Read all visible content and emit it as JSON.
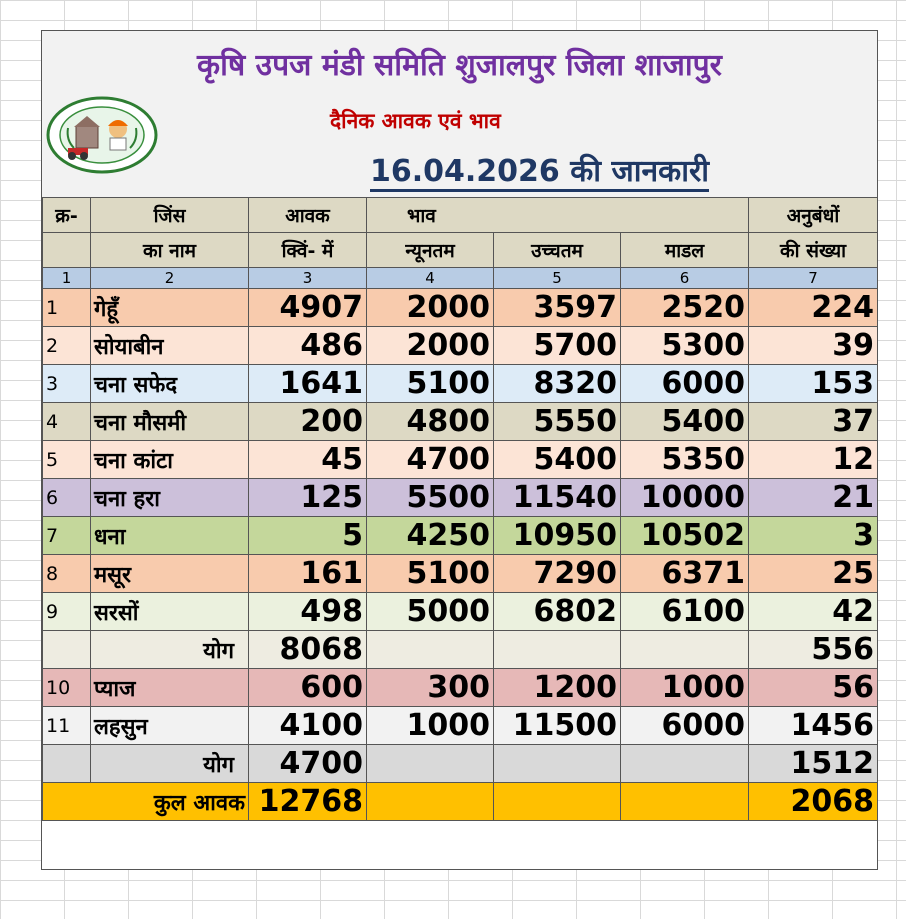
{
  "header": {
    "title": "कृषि उपज मंडी समिति शुजालपुर जिला शाजापुर",
    "subtitle": "दैनिक आवक एवं भाव",
    "date_line": "16.04.2026 की जानकारी",
    "logo_name": "mandi-board-logo-icon"
  },
  "columns": {
    "sno_label": "क्र-",
    "name_line1": "जिंस",
    "name_line2": "का नाम",
    "arrival_line1": "आवक",
    "arrival_line2": "क्विं- में",
    "price_label": "भाव",
    "min_label": "न्यूनतम",
    "max_label": "उच्चतम",
    "model_label": "माडल",
    "contracts_line1": "अनुबंधों",
    "contracts_line2": "की संख्या",
    "numbers": [
      "1",
      "2",
      "3",
      "4",
      "5",
      "6",
      "7"
    ]
  },
  "rows": [
    {
      "sno": "1",
      "name": "गेहूँ",
      "arrival": "4907",
      "min": "2000",
      "max": "3597",
      "model": "2520",
      "contracts": "224"
    },
    {
      "sno": "2",
      "name": "सोयाबीन",
      "arrival": "486",
      "min": "2000",
      "max": "5700",
      "model": "5300",
      "contracts": "39"
    },
    {
      "sno": "3",
      "name": "चना सफेद",
      "arrival": "1641",
      "min": "5100",
      "max": "8320",
      "model": "6000",
      "contracts": "153"
    },
    {
      "sno": "4",
      "name": "चना मौसमी",
      "arrival": "200",
      "min": "4800",
      "max": "5550",
      "model": "5400",
      "contracts": "37"
    },
    {
      "sno": "5",
      "name": "चना कांटा",
      "arrival": "45",
      "min": "4700",
      "max": "5400",
      "model": "5350",
      "contracts": "12"
    },
    {
      "sno": "6",
      "name": "चना हरा",
      "arrival": "125",
      "min": "5500",
      "max": "11540",
      "model": "10000",
      "contracts": "21"
    },
    {
      "sno": "7",
      "name": "धना",
      "arrival": "5",
      "min": "4250",
      "max": "10950",
      "model": "10502",
      "contracts": "3"
    },
    {
      "sno": "8",
      "name": "मसूर",
      "arrival": "161",
      "min": "5100",
      "max": "7290",
      "model": "6371",
      "contracts": "25"
    },
    {
      "sno": "9",
      "name": "सरसों",
      "arrival": "498",
      "min": "5000",
      "max": "6802",
      "model": "6100",
      "contracts": "42"
    }
  ],
  "subtotal1": {
    "label": "योग",
    "arrival": "8068",
    "contracts": "556"
  },
  "rows2": [
    {
      "sno": "10",
      "name": "प्याज",
      "arrival": "600",
      "min": "300",
      "max": "1200",
      "model": "1000",
      "contracts": "56"
    },
    {
      "sno": "11",
      "name": "लहसुन",
      "arrival": "4100",
      "min": "1000",
      "max": "11500",
      "model": "6000",
      "contracts": "1456"
    }
  ],
  "subtotal2": {
    "label": "योग",
    "arrival": "4700",
    "contracts": "1512"
  },
  "grand_total": {
    "label": "कुल आवक",
    "arrival": "12768",
    "contracts": "2068"
  },
  "colors": {
    "title": "#7030a0",
    "subtitle": "#c00000",
    "date": "#1f3864",
    "total_row": "#ffc000"
  }
}
